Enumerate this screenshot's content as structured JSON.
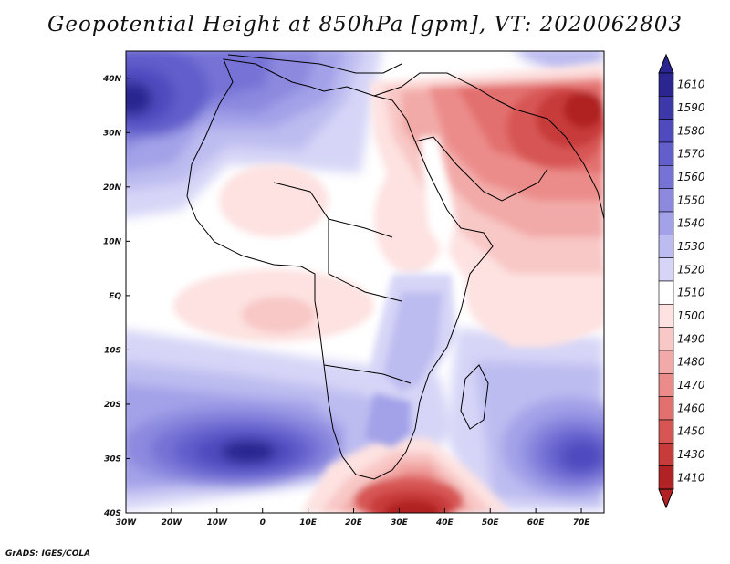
{
  "title": "Geopotential Height at 850hPa [gpm], VT: 2020062803",
  "credit": "GrADS: IGES/COLA",
  "axes": {
    "x_ticks": [
      "30W",
      "20W",
      "10W",
      "0",
      "10E",
      "20E",
      "30E",
      "40E",
      "50E",
      "60E",
      "70E"
    ],
    "y_ticks": [
      "40N",
      "30N",
      "20N",
      "10N",
      "EQ",
      "10S",
      "20S",
      "30S",
      "40S"
    ]
  },
  "colorbar": {
    "levels": [
      "1610",
      "1590",
      "1580",
      "1570",
      "1560",
      "1550",
      "1540",
      "1530",
      "1520",
      "1510",
      "1500",
      "1490",
      "1480",
      "1470",
      "1460",
      "1450",
      "1430",
      "1410"
    ],
    "colors": [
      "#2a2590",
      "#3d38a8",
      "#4f4bbf",
      "#625ecc",
      "#7672d6",
      "#8c89df",
      "#a3a1e8",
      "#bdbcf0",
      "#d6d5f7",
      "#ffffff",
      "#fde2e1",
      "#f8c8c6",
      "#f2aaa8",
      "#eb8c8a",
      "#e2706e",
      "#d75654",
      "#c73b3a",
      "#b02223"
    ]
  },
  "fields": {
    "background_color": "#ffffff",
    "regions": [
      {
        "name": "high-north-atlantic",
        "color": "#d6d5f7"
      },
      {
        "name": "high-south-atlantic",
        "color": "#d6d5f7"
      },
      {
        "name": "high-south-indian",
        "color": "#d6d5f7"
      },
      {
        "name": "low-arabia",
        "color": "#fde2e1"
      },
      {
        "name": "low-south-africa-cape",
        "color": "#f2aaa8"
      },
      {
        "name": "low-atlantic-equatorial",
        "color": "#fde2e1"
      },
      {
        "name": "low-indian-equatorial",
        "color": "#fde2e1"
      },
      {
        "name": "low-sahara",
        "color": "#fde2e1"
      }
    ]
  }
}
